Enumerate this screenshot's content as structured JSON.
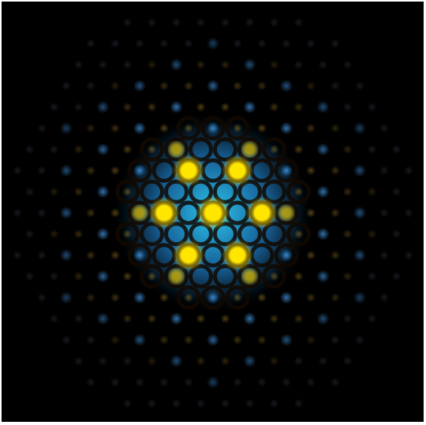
{
  "image": {
    "subject": "interference-pattern",
    "background_color": "#000000",
    "frame_color": "#ffffff"
  },
  "palette": {
    "core_glow": "#2fd6ff",
    "core_glow_edge": "#1f7fc8",
    "bright_spot": "#ffe600",
    "bright_spot_halo": "#e8c200",
    "dark_ring": "#120800",
    "dim_blue_spot": "#3f8fd8",
    "dim_orange_spot": "#8a6a20",
    "faint_spot": "#3a4050"
  },
  "lattice": {
    "symmetry": "hexagonal",
    "rings": 5
  }
}
